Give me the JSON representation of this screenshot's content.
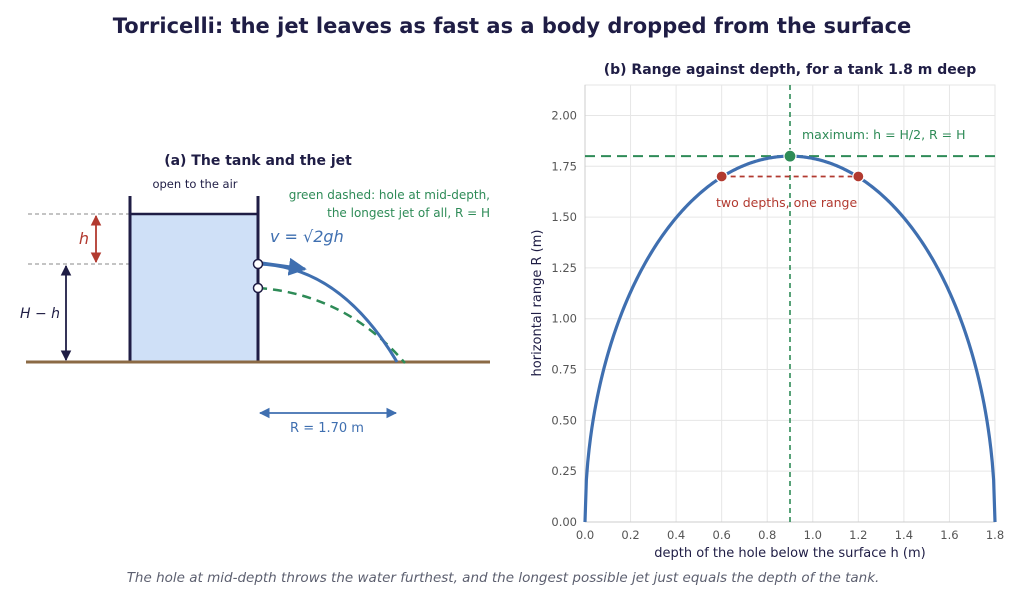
{
  "title": "Torricelli: the jet leaves as fast as a body dropped from the surface",
  "caption": "The hole at mid-depth throws the water furthest, and the longest possible jet just equals the depth of the tank.",
  "colors": {
    "title": "#1f1d45",
    "curve": "#3f6fb0",
    "accent_green": "#2e8b57",
    "accent_red": "#b23a30",
    "water": "#cfe0f7",
    "ground": "#8b6a45",
    "grid": "#e6e6e6"
  },
  "panel_a": {
    "title": "(a) The tank and the jet",
    "open_label": "open to the air",
    "note_line1": "green dashed: hole at mid-depth,",
    "note_line2": "the longest jet of all, R = H",
    "velocity_label": "v = √2gh",
    "h_label": "h",
    "hminus_label": "H − h",
    "range_label": "R = 1.70 m",
    "range_value_m": 1.7
  },
  "chart_data": {
    "type": "line",
    "title": "(b) Range against depth, for a tank 1.8 m deep",
    "xlabel": "depth of the hole below the surface   h  (m)",
    "ylabel": "horizontal range   R  (m)",
    "xlim": [
      0,
      1.8
    ],
    "ylim": [
      0,
      2.15
    ],
    "xticks": [
      "0.0",
      "0.2",
      "0.4",
      "0.6",
      "0.8",
      "1.0",
      "1.2",
      "1.4",
      "1.6",
      "1.8"
    ],
    "yticks": [
      "0.00",
      "0.25",
      "0.50",
      "0.75",
      "1.00",
      "1.25",
      "1.50",
      "1.75",
      "2.00"
    ],
    "grid": true,
    "tank_depth_H": 1.8,
    "series": [
      {
        "x": [
          0,
          0.05,
          0.1,
          0.2,
          0.3,
          0.4,
          0.5,
          0.6,
          0.7,
          0.8,
          0.9,
          1.0,
          1.1,
          1.2,
          1.3,
          1.4,
          1.5,
          1.6,
          1.7,
          1.75,
          1.8
        ],
        "y": [
          0,
          0.592,
          0.825,
          1.131,
          1.342,
          1.497,
          1.612,
          1.697,
          1.758,
          1.789,
          1.8,
          1.789,
          1.758,
          1.697,
          1.612,
          1.497,
          1.342,
          1.131,
          0.825,
          0.592,
          0
        ]
      }
    ],
    "max_point": {
      "x": 0.9,
      "y": 1.8
    },
    "max_label": "maximum: h = H/2, R = H",
    "pair_points": [
      {
        "x": 0.6,
        "y": 1.7
      },
      {
        "x": 1.2,
        "y": 1.7
      }
    ],
    "pair_label": "two depths, one range",
    "vline_x": 0.9,
    "hline_y": 1.8
  }
}
